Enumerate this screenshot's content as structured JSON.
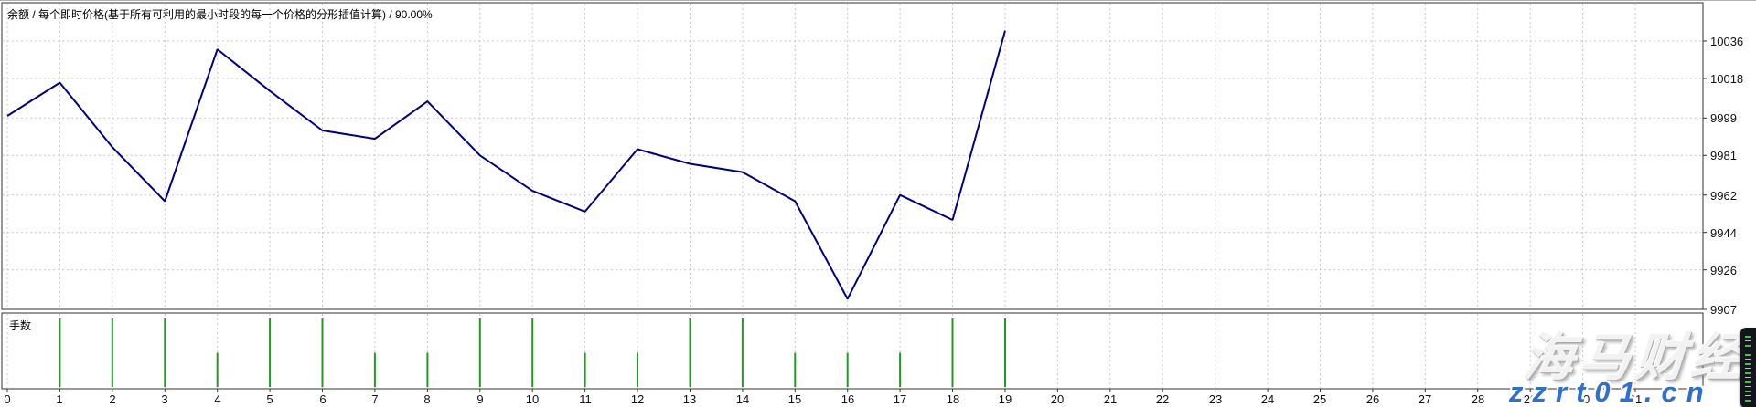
{
  "chart_data": [
    {
      "type": "line",
      "name": "balance-curve",
      "title": "余额 / 每个即时价格(基于所有可利用的最小时段的每一个价格的分形插值计算) / 90.00%",
      "x": [
        0,
        1,
        2,
        3,
        4,
        5,
        6,
        7,
        8,
        9,
        10,
        11,
        12,
        13,
        14,
        15,
        16,
        17,
        18,
        19
      ],
      "values": [
        10000,
        10016,
        9985,
        9959,
        10032,
        10012,
        9993,
        9989,
        10007,
        9981,
        9964,
        9954,
        9984,
        9977,
        9973,
        9959,
        9912,
        9962,
        9950,
        10041
      ],
      "y_ticks": [
        10036,
        10018,
        9999,
        9981,
        9962,
        9944,
        9926,
        9907
      ],
      "x_ticks": [
        0,
        1,
        2,
        3,
        4,
        5,
        6,
        7,
        8,
        9,
        10,
        11,
        12,
        13,
        14,
        15,
        16,
        17,
        18,
        19,
        20,
        21,
        22,
        23,
        24,
        25,
        26,
        27,
        28,
        29,
        30,
        31
      ],
      "ylim": [
        9898,
        10046
      ],
      "xlim": [
        0,
        32
      ],
      "line_color": "#000080",
      "grid": true,
      "legend_position": "none"
    },
    {
      "type": "bar",
      "name": "lots-per-trade",
      "label": "手数",
      "x": [
        1,
        2,
        3,
        4,
        5,
        6,
        7,
        8,
        9,
        10,
        11,
        12,
        13,
        14,
        15,
        16,
        17,
        18,
        19
      ],
      "values": [
        1,
        1,
        1,
        0.5,
        1,
        1,
        0.5,
        0.5,
        1,
        1,
        0.5,
        0.5,
        1,
        1,
        0.5,
        0.5,
        0.5,
        1,
        1
      ],
      "ylim": [
        0,
        1
      ],
      "bar_color": "#1f9d1f"
    }
  ],
  "watermark": {
    "brand_text": "海马财经",
    "site_text": "zzrt01.cn",
    "brand_color": "#f2f2f2",
    "site_color": "#2e6fd2"
  },
  "colors": {
    "background": "#ffffff",
    "grid": "#c8c8c8",
    "frame": "#303030",
    "balance_line": "#000080",
    "lots_bar": "#1f9d1f"
  }
}
